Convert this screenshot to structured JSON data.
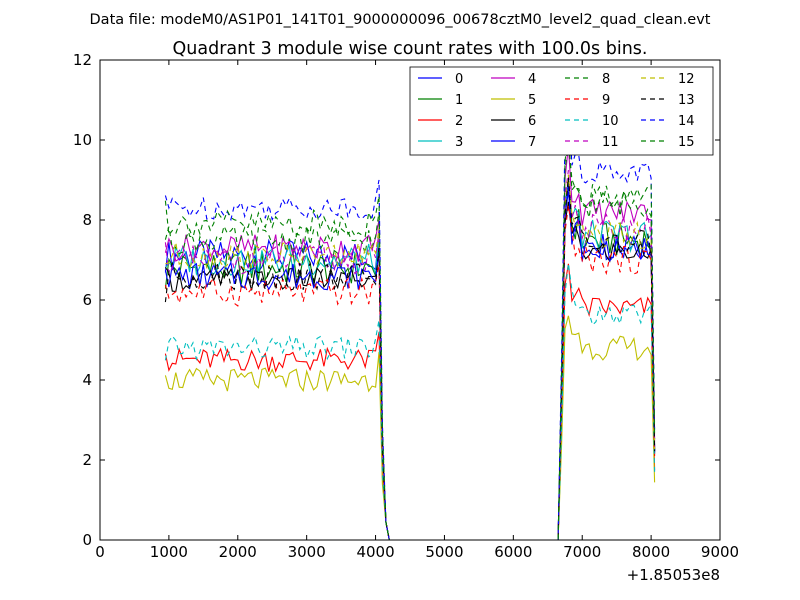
{
  "figure": {
    "suptitle": "Data file: modeM0/AS1P01_141T01_9000000096_00678cztM0_level2_quad_clean.evt",
    "x_offset_label": "+1.85053e8"
  },
  "chart_data": {
    "type": "line",
    "title": "Quadrant 3 module wise count rates with 100.0s bins.",
    "xlabel": "",
    "ylabel": "",
    "xlim": [
      0,
      9000
    ],
    "ylim": [
      0,
      12
    ],
    "x_ticks": [
      0,
      1000,
      2000,
      3000,
      4000,
      5000,
      6000,
      7000,
      8000,
      9000
    ],
    "y_ticks": [
      0,
      2,
      4,
      6,
      8,
      10,
      12
    ],
    "grid": false,
    "legend_position": "top-right",
    "legend_columns": 4,
    "x_shape": {
      "seg1_start": 950,
      "seg1_end": 4050,
      "drop_points": [
        4100,
        4150,
        4200
      ],
      "gap_end": 6650,
      "seg2_start": 6700,
      "seg2_end": 8050
    },
    "series": [
      {
        "name": "0",
        "color": "#0000ff",
        "dash": "solid",
        "base1": 7.1,
        "base2": 7.4,
        "amp": 0.4
      },
      {
        "name": "1",
        "color": "#008000",
        "dash": "solid",
        "base1": 6.8,
        "base2": 7.5,
        "amp": 0.45
      },
      {
        "name": "2",
        "color": "#ff0000",
        "dash": "solid",
        "base1": 4.5,
        "base2": 5.8,
        "amp": 0.3
      },
      {
        "name": "3",
        "color": "#00bfbf",
        "dash": "solid",
        "base1": 7.0,
        "base2": 7.6,
        "amp": 0.4
      },
      {
        "name": "4",
        "color": "#bf00bf",
        "dash": "solid",
        "base1": 7.3,
        "base2": 8.2,
        "amp": 0.35
      },
      {
        "name": "5",
        "color": "#bfbf00",
        "dash": "solid",
        "base1": 4.0,
        "base2": 4.8,
        "amp": 0.3
      },
      {
        "name": "6",
        "color": "#000000",
        "dash": "solid",
        "base1": 6.5,
        "base2": 7.2,
        "amp": 0.3
      },
      {
        "name": "7",
        "color": "#0000ff",
        "dash": "solid",
        "base1": 6.6,
        "base2": 7.3,
        "amp": 0.35
      },
      {
        "name": "8",
        "color": "#008000",
        "dash": "dashed",
        "base1": 7.5,
        "base2": 8.4,
        "amp": 0.35
      },
      {
        "name": "9",
        "color": "#ff0000",
        "dash": "dashed",
        "base1": 6.2,
        "base2": 7.0,
        "amp": 0.35
      },
      {
        "name": "10",
        "color": "#00bfbf",
        "dash": "dashed",
        "base1": 4.8,
        "base2": 5.6,
        "amp": 0.3
      },
      {
        "name": "11",
        "color": "#bf00bf",
        "dash": "dashed",
        "base1": 7.0,
        "base2": 7.8,
        "amp": 0.35
      },
      {
        "name": "12",
        "color": "#bfbf00",
        "dash": "dashed",
        "base1": 7.1,
        "base2": 7.6,
        "amp": 0.35
      },
      {
        "name": "13",
        "color": "#000000",
        "dash": "dashed",
        "base1": 6.6,
        "base2": 7.4,
        "amp": 0.35
      },
      {
        "name": "14",
        "color": "#0000ff",
        "dash": "dashed",
        "base1": 8.3,
        "base2": 9.2,
        "amp": 0.3
      },
      {
        "name": "15",
        "color": "#008000",
        "dash": "dashed",
        "base1": 7.9,
        "base2": 8.6,
        "amp": 0.35
      }
    ]
  }
}
